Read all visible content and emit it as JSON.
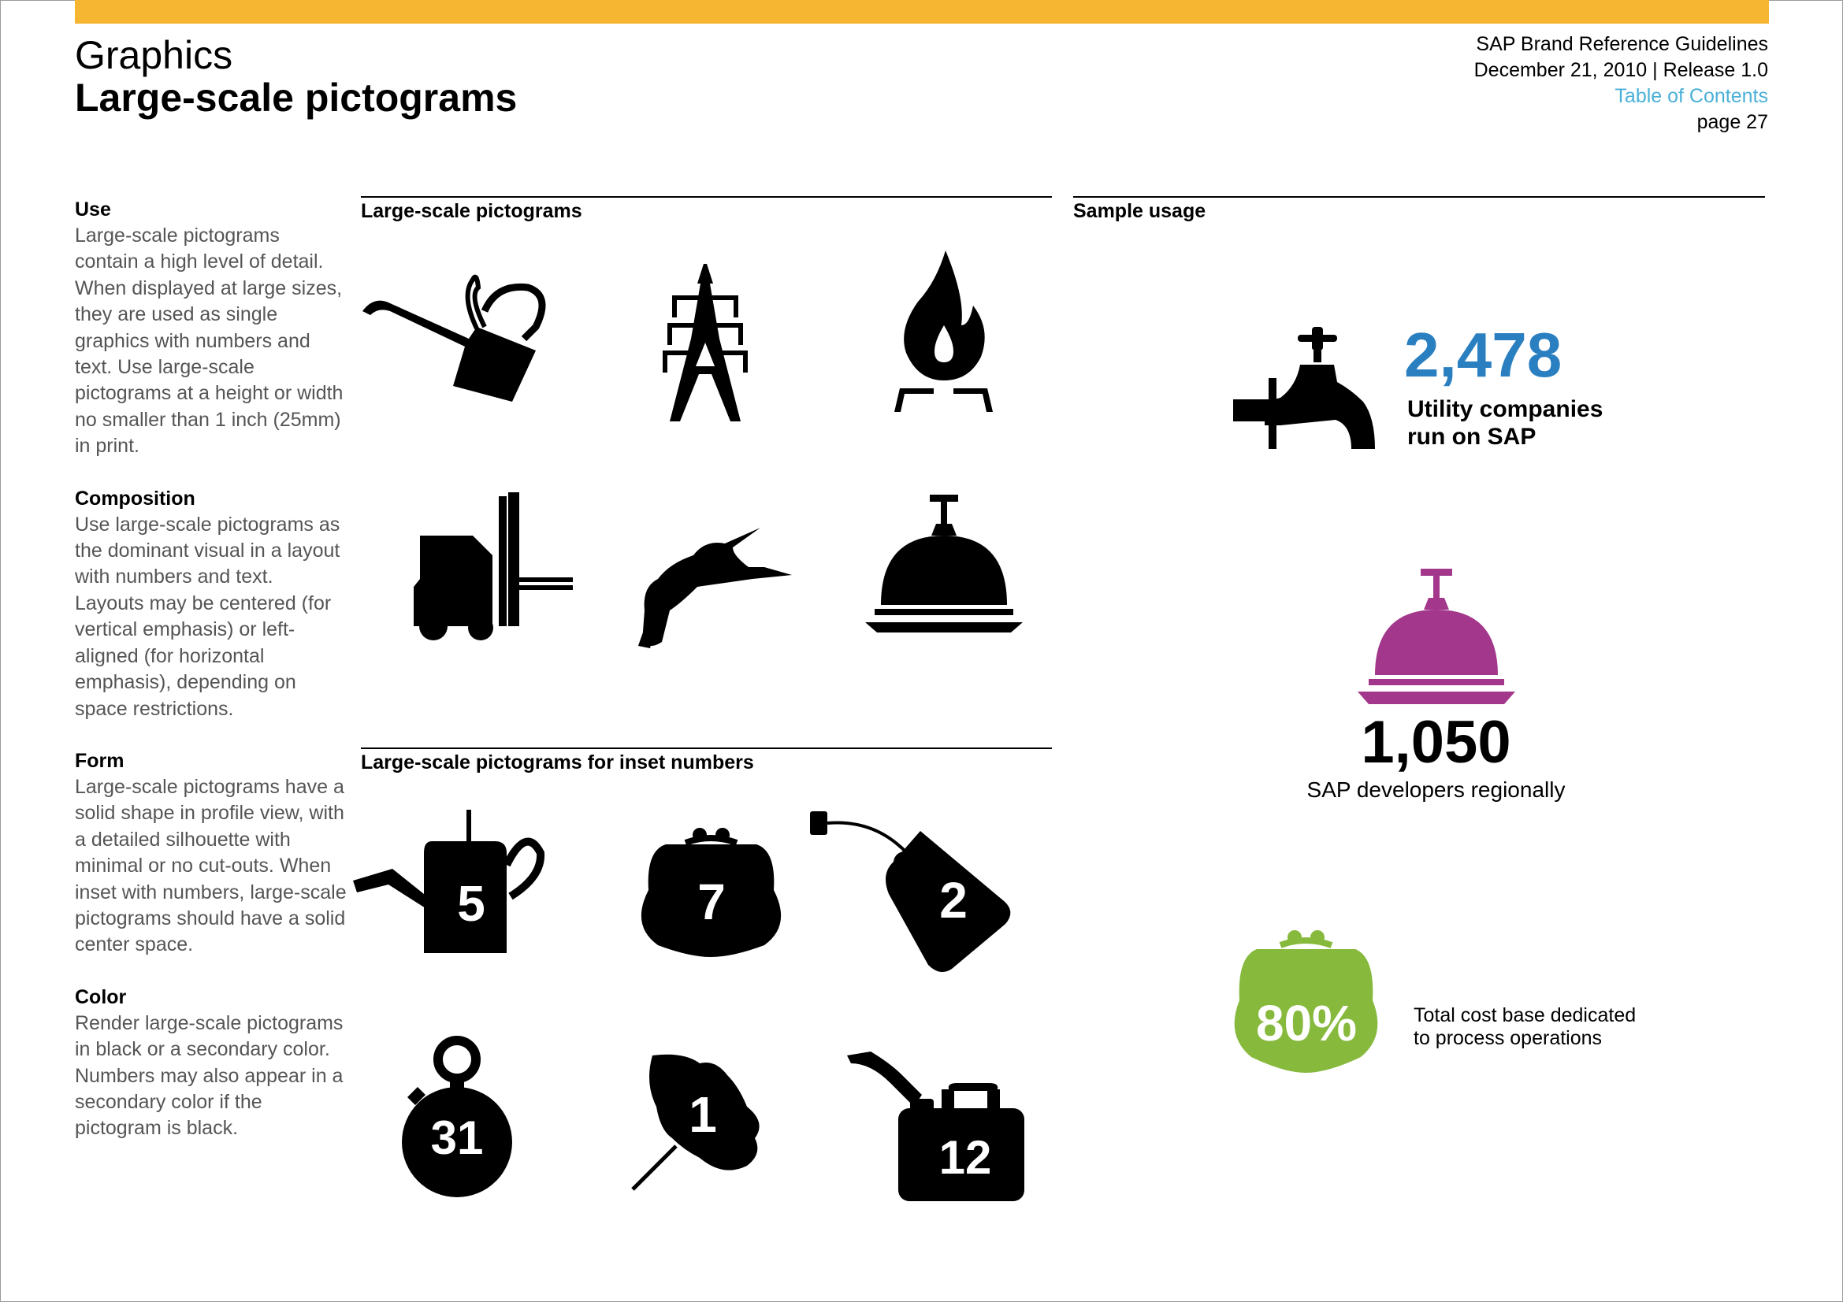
{
  "header": {
    "section": "Graphics",
    "title": "Large-scale pictograms",
    "doc_title": "SAP Brand Reference Guidelines",
    "date_release": "December 21, 2010 | Release 1.0",
    "toc_link": "Table of Contents",
    "page": "page 27"
  },
  "left": {
    "use_heading": "Use",
    "use_text": "Large-scale pictograms contain a high level of detail. When displayed at large sizes, they are used as single graphics with numbers and text. Use large-scale pictograms at a height or width no smaller than 1 inch (25mm) in print.",
    "composition_heading": "Composition",
    "composition_text": "Use large-scale pictograms as the dominant visual in a layout with numbers and text. Layouts may be centered (for vertical emphasis) or left-aligned (for horizontal emphasis), depending on space restrictions.",
    "form_heading": "Form",
    "form_text": "Large-scale pictograms have a solid shape in profile view, with a detailed silhouette with minimal or no cut-outs. When inset with numbers, large-scale pictograms should have a solid center space.",
    "color_heading": "Color",
    "color_text": "Render large-scale pictograms in black or a secondary color. Numbers may also appear in a secondary color if the pictogram is black."
  },
  "columns": {
    "pictograms_heading": "Large-scale pictograms",
    "inset_heading": "Large-scale pictograms for inset numbers",
    "sample_heading": "Sample usage"
  },
  "pictograms": [
    {
      "icon": "oil-can-icon"
    },
    {
      "icon": "power-pylon-icon"
    },
    {
      "icon": "gas-flame-icon"
    },
    {
      "icon": "forklift-icon"
    },
    {
      "icon": "hummingbird-icon"
    },
    {
      "icon": "service-bell-icon"
    }
  ],
  "inset": {
    "watering_can": "5",
    "purse": "7",
    "price_tag": "2",
    "stopwatch": "31",
    "leaf": "1",
    "fuel_can": "12"
  },
  "samples": {
    "faucet_number": "2,478",
    "faucet_text_1": "Utility companies",
    "faucet_text_2": "run on SAP",
    "bell_number": "1,050",
    "bell_text": "SAP developers regionally",
    "purse_number": "80%",
    "purse_text_1": "Total cost base dedicated",
    "purse_text_2": "to process operations"
  },
  "colors": {
    "top_bar": "#f6b631",
    "link": "#4bb0d8",
    "blue": "#2a7fc1",
    "magenta": "#a3378b",
    "green": "#86b93c"
  }
}
